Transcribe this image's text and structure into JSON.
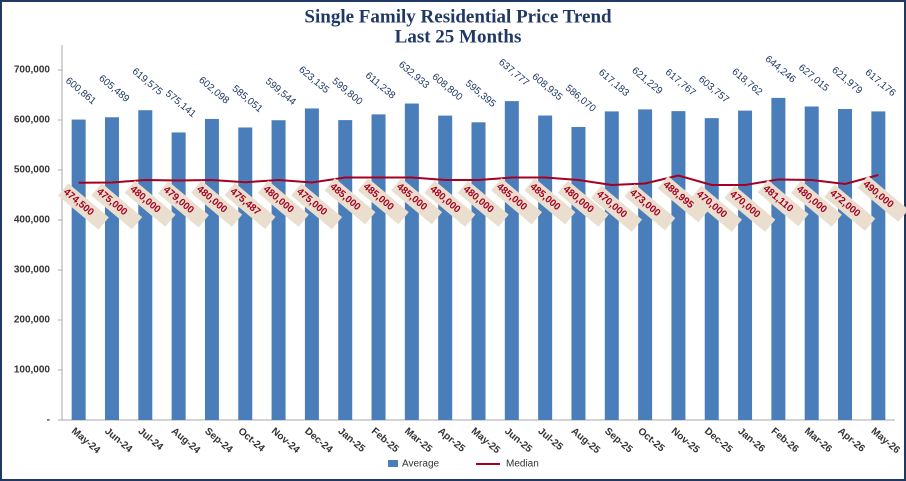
{
  "chart_data": {
    "type": "bar",
    "title": "Single Family Residential Price Trend",
    "subtitle": "Last 25 Months",
    "categories": [
      "May-24",
      "Jun-24",
      "Jul-24",
      "Aug-24",
      "Sep-24",
      "Oct-24",
      "Nov-24",
      "Dec-24",
      "Jan-25",
      "Feb-25",
      "Mar-25",
      "Apr-25",
      "May-25",
      "Jun-25",
      "Jul-25",
      "Aug-25",
      "Sep-25",
      "Oct-25",
      "Nov-25",
      "Dec-25",
      "Jan-26",
      "Feb-26",
      "Mar-26",
      "Apr-26",
      "May-26"
    ],
    "series": [
      {
        "name": "Average",
        "type": "bar",
        "color": "#4a7ebb",
        "values": [
          600861,
          605489,
          619575,
          575141,
          602098,
          585051,
          599544,
          623135,
          599800,
          611238,
          632933,
          608800,
          595395,
          637777,
          608935,
          586070,
          617183,
          621229,
          617767,
          603757,
          618762,
          644246,
          627015,
          621979,
          617176
        ],
        "value_labels": [
          "600,861",
          "605,489",
          "619,575",
          "575,141",
          "602,098",
          "585,051",
          "599,544",
          "623,135",
          "599,800",
          "611,238",
          "632,933",
          "608,800",
          "595,395",
          "637,777",
          "608,935",
          "586,070",
          "617,183",
          "621,229",
          "617,767",
          "603,757",
          "618,762",
          "644,246",
          "627,015",
          "621,979",
          "617,176"
        ]
      },
      {
        "name": "Median",
        "type": "line",
        "color": "#a50021",
        "values": [
          474500,
          475000,
          480000,
          479000,
          480000,
          475487,
          480000,
          475000,
          485000,
          485000,
          485000,
          480000,
          480000,
          485000,
          485000,
          480000,
          470000,
          473000,
          488995,
          470000,
          470000,
          481110,
          480000,
          472000,
          490000
        ],
        "value_labels": [
          "474,500",
          "475,000",
          "480,000",
          "479,000",
          "480,000",
          "475,487",
          "480,000",
          "475,000",
          "485,000",
          "485,000",
          "485,000",
          "480,000",
          "480,000",
          "485,000",
          "485,000",
          "480,000",
          "470,000",
          "473,000",
          "488,995",
          "470,000",
          "470,000",
          "481,110",
          "480,000",
          "472,000",
          "490,000"
        ]
      }
    ],
    "ylim": [
      0,
      750000
    ],
    "yticks": [
      {
        "value": 0,
        "label": "-"
      },
      {
        "value": 100000,
        "label": "100,000"
      },
      {
        "value": 200000,
        "label": "200,000"
      },
      {
        "value": 300000,
        "label": "300,000"
      },
      {
        "value": 400000,
        "label": "400,000"
      },
      {
        "value": 500000,
        "label": "500,000"
      },
      {
        "value": 600000,
        "label": "600,000"
      },
      {
        "value": 700000,
        "label": "700,000"
      }
    ],
    "legend": "bottom"
  }
}
